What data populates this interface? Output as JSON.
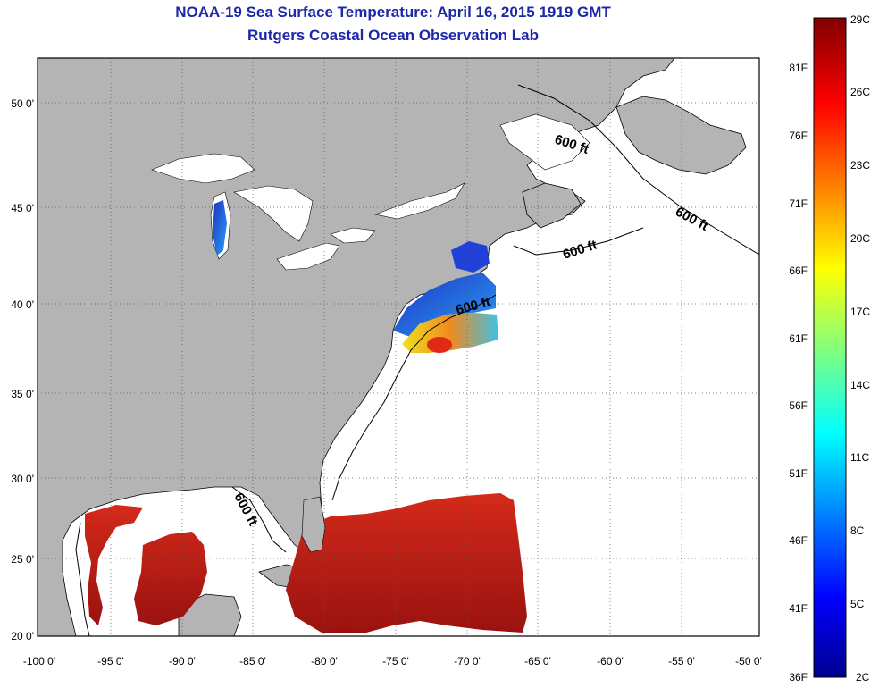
{
  "title": "NOAA-19 Sea Surface Temperature:  April 16, 2015 1919 GMT",
  "subtitle": "Rutgers Coastal Ocean Observation Lab",
  "lon_ticks": [
    "-100 0'",
    "-95 0'",
    "-90 0'",
    "-85 0'",
    "-80 0'",
    "-75 0'",
    "-70 0'",
    "-65 0'",
    "-60 0'",
    "-55 0'",
    "-50 0'"
  ],
  "lat_ticks": [
    "20 0'",
    "25 0'",
    "30 0'",
    "35 0'",
    "40 0'",
    "45 0'",
    "50 0'"
  ],
  "contour_label": "600 ft",
  "colorbar": {
    "celsius": [
      "29C",
      "26C",
      "23C",
      "20C",
      "17C",
      "14C",
      "11C",
      "8C",
      "5C",
      "2C"
    ],
    "fahrenheit": [
      "81F",
      "76F",
      "71F",
      "66F",
      "61F",
      "56F",
      "51F",
      "46F",
      "41F",
      "36F"
    ]
  },
  "colors": {
    "land": "#b4b4b4",
    "ocean": "#ffffff",
    "title": "#1c28a8",
    "warm": "#c81e14",
    "cold": "#1e3cd2"
  }
}
